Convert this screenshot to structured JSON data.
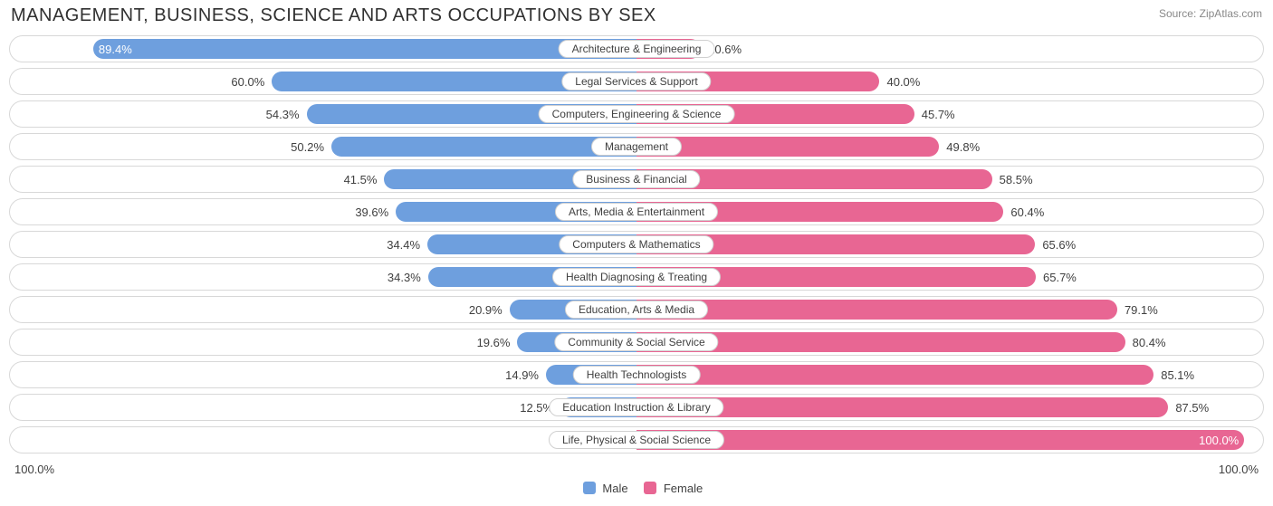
{
  "title": "MANAGEMENT, BUSINESS, SCIENCE AND ARTS OCCUPATIONS BY SEX",
  "source_label": "Source:",
  "source_name": "ZipAtlas.com",
  "colors": {
    "male": "#6e9fde",
    "female": "#e86693",
    "row_border": "#d8d8d8",
    "text": "#404040",
    "title_text": "#303030",
    "source_text": "#888888",
    "background": "#ffffff"
  },
  "axis": {
    "left": "100.0%",
    "right": "100.0%"
  },
  "legend": {
    "male": "Male",
    "female": "Female"
  },
  "half_width_pct": 48.5,
  "rows": [
    {
      "label": "Architecture & Engineering",
      "male": 89.4,
      "female": 10.6,
      "male_inside": true
    },
    {
      "label": "Legal Services & Support",
      "male": 60.0,
      "female": 40.0,
      "male_inside": false
    },
    {
      "label": "Computers, Engineering & Science",
      "male": 54.3,
      "female": 45.7,
      "male_inside": false
    },
    {
      "label": "Management",
      "male": 50.2,
      "female": 49.8,
      "male_inside": false
    },
    {
      "label": "Business & Financial",
      "male": 41.5,
      "female": 58.5,
      "male_inside": false
    },
    {
      "label": "Arts, Media & Entertainment",
      "male": 39.6,
      "female": 60.4,
      "male_inside": false
    },
    {
      "label": "Computers & Mathematics",
      "male": 34.4,
      "female": 65.6,
      "male_inside": false
    },
    {
      "label": "Health Diagnosing & Treating",
      "male": 34.3,
      "female": 65.7,
      "male_inside": false
    },
    {
      "label": "Education, Arts & Media",
      "male": 20.9,
      "female": 79.1,
      "male_inside": false
    },
    {
      "label": "Community & Social Service",
      "male": 19.6,
      "female": 80.4,
      "male_inside": false
    },
    {
      "label": "Health Technologists",
      "male": 14.9,
      "female": 85.1,
      "male_inside": false
    },
    {
      "label": "Education Instruction & Library",
      "male": 12.5,
      "female": 87.5,
      "male_inside": false
    },
    {
      "label": "Life, Physical & Social Science",
      "male": 0.0,
      "female": 100.0,
      "male_inside": false
    }
  ]
}
